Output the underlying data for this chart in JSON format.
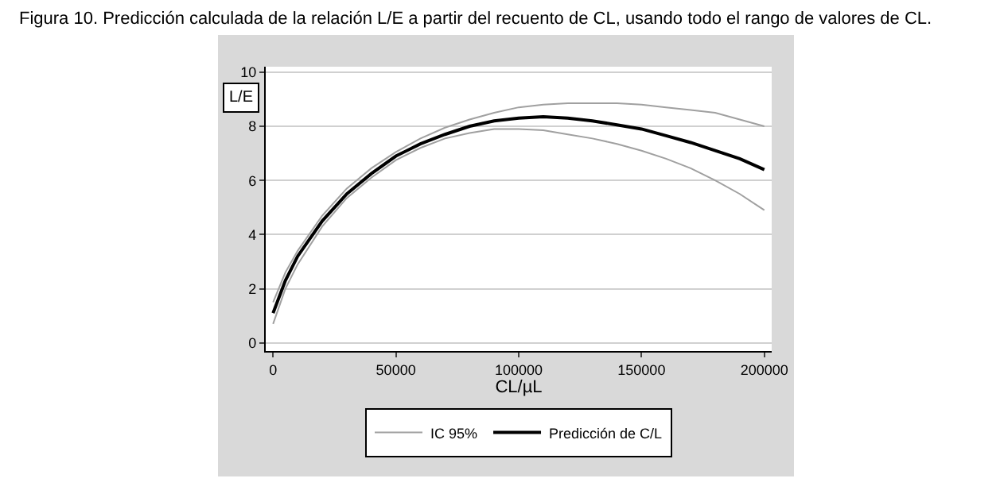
{
  "chart_data": {
    "type": "line",
    "title": "Figura 10. Predicción calculada de la relación L/E a partir del recuento de CL, usando todo el rango de valores de CL.",
    "xlabel": "CL/µL",
    "ylabel": "L/E",
    "x": [
      0,
      5000,
      10000,
      20000,
      30000,
      40000,
      50000,
      60000,
      70000,
      80000,
      90000,
      100000,
      110000,
      120000,
      130000,
      140000,
      150000,
      160000,
      170000,
      180000,
      190000,
      200000
    ],
    "series": [
      {
        "name": "IC 95%",
        "color": "#a0a0a0",
        "values": [
          1.5,
          2.6,
          3.4,
          4.7,
          5.7,
          6.45,
          7.05,
          7.55,
          7.95,
          8.25,
          8.5,
          8.7,
          8.8,
          8.85,
          8.85,
          8.85,
          8.8,
          8.7,
          8.6,
          8.5,
          8.25,
          8.0
        ]
      },
      {
        "color": "#a0a0a0",
        "values": [
          0.7,
          2.0,
          2.9,
          4.3,
          5.35,
          6.1,
          6.75,
          7.2,
          7.55,
          7.75,
          7.9,
          7.9,
          7.85,
          7.7,
          7.55,
          7.35,
          7.1,
          6.8,
          6.45,
          6.0,
          5.5,
          4.9
        ]
      },
      {
        "name": "Predicción de C/L",
        "color": "#000000",
        "values": [
          1.1,
          2.3,
          3.2,
          4.5,
          5.5,
          6.25,
          6.9,
          7.35,
          7.7,
          8.0,
          8.2,
          8.3,
          8.35,
          8.3,
          8.2,
          8.05,
          7.9,
          7.65,
          7.4,
          7.1,
          6.8,
          6.4
        ]
      }
    ],
    "xlim": [
      -3000,
      203000
    ],
    "xticks": [
      0,
      50000,
      100000,
      150000,
      200000
    ],
    "ylim": [
      -0.3,
      10.2
    ],
    "yticks": [
      0,
      2,
      4,
      6,
      8,
      10
    ],
    "grid": "y",
    "legend": "bottom",
    "marker": "none",
    "line_style": "solid"
  }
}
